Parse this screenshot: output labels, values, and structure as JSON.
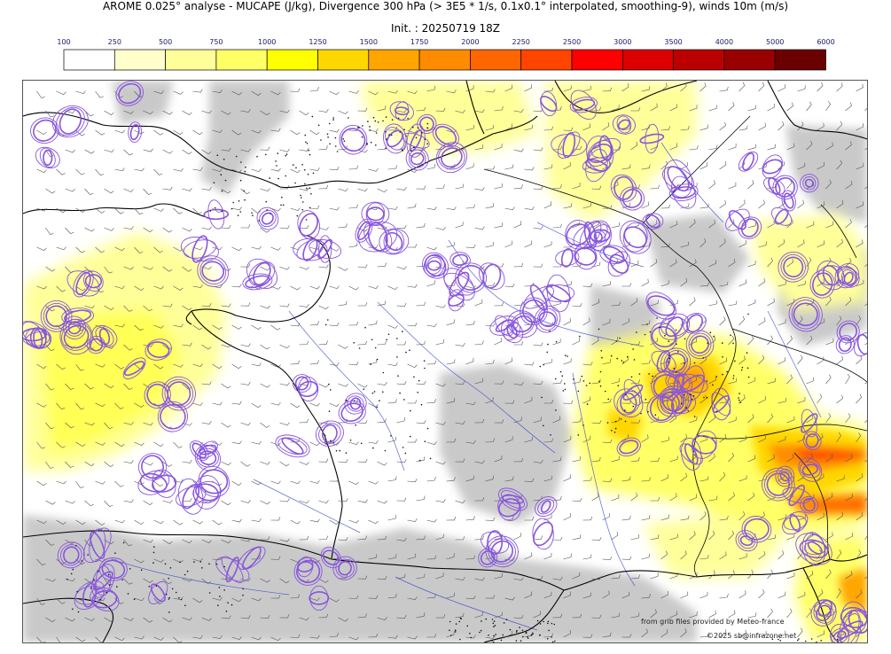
{
  "title": "AROME 0.025° analyse - MUCAPE (J/kg), Divergence 300 hPa (> 3E5 * 1/s, 0.1x0.1° interpolated, smoothing-9), winds 10m (m/s)",
  "subtitle": "Init. : 20250719 18Z",
  "colorbar": {
    "ticks": [
      "100",
      "250",
      "500",
      "750",
      "1000",
      "1250",
      "1500",
      "1750",
      "2000",
      "2250",
      "2500",
      "3000",
      "3500",
      "4000",
      "5000",
      "6000"
    ],
    "colors": [
      "#ffffff",
      "#ffffcc",
      "#ffff99",
      "#ffff66",
      "#ffff00",
      "#ffd700",
      "#ffa500",
      "#ff8c00",
      "#ff6600",
      "#ff4500",
      "#ff0000",
      "#dd0000",
      "#bb0000",
      "#990000",
      "#6b0000"
    ]
  },
  "credits": {
    "source": "from grib files provided by Meteo-france",
    "copyright": "©2025 sb@infrazone.net"
  },
  "colors": {
    "divergence_contour": "#8855dd",
    "rivers": "#3333cc",
    "coast": "#000000",
    "cloud": "#bbbbbb"
  }
}
